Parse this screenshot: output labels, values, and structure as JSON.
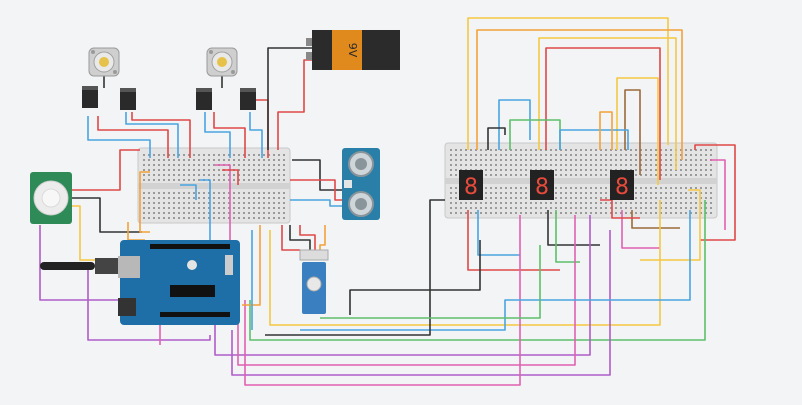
{
  "battery": {
    "label": "9V"
  },
  "displays": [
    {
      "digit": "8"
    },
    {
      "digit": "8"
    },
    {
      "digit": "8"
    }
  ],
  "colors": {
    "canvas": "#f2f4f6",
    "breadboard": "#e6e6e6",
    "arduino": "#1e6fa8",
    "battery_body": "#2b2b2b",
    "battery_cap": "#e08a1e",
    "sensor_board": "#2a7fa8",
    "pir_board": "#2e8b57",
    "servo": "#3a7fc0",
    "display_body": "#222222",
    "segment": "#e84a3c",
    "wire_orange": "#f2a13a",
    "wire_yellow": "#f5c842",
    "wire_red": "#e04848",
    "wire_blue": "#4aa3e0",
    "wire_green": "#5cbf6a",
    "wire_purple": "#b05cc8",
    "wire_pink": "#e060b0",
    "wire_black": "#333333",
    "wire_gray": "#888888",
    "wire_brown": "#9b6a3a"
  },
  "icons": {
    "motor": "dc-motor-icon",
    "pir": "pir-sensor-icon",
    "ultrasonic": "ultrasonic-sensor-icon",
    "servo": "servo-icon",
    "battery": "battery-icon",
    "display": "seven-segment-display-icon"
  }
}
